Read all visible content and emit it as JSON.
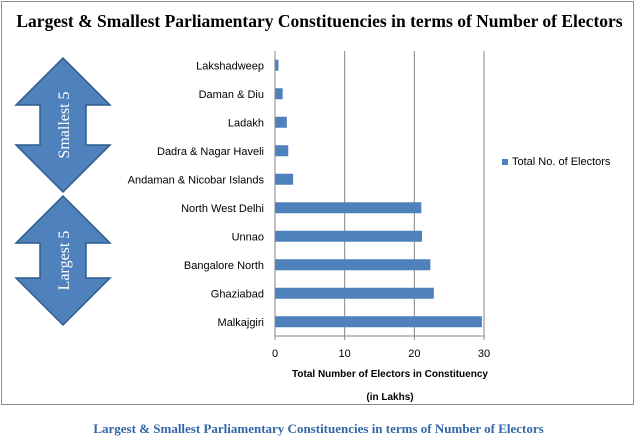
{
  "chart_data": {
    "type": "bar",
    "orientation": "horizontal",
    "title": "Largest & Smallest Parliamentary Constituencies in terms of Number of Electors",
    "categories": [
      "Lakshadweep",
      "Daman & Diu",
      "Ladakh",
      "Dadra & Nagar Haveli",
      "Andaman & Nicobar Islands",
      "North West Delhi",
      "Unnao",
      "Bangalore North",
      "Ghaziabad",
      "Malkajgiri"
    ],
    "series": [
      {
        "name": "Total No. of Electors",
        "values": [
          0.5,
          1.1,
          1.7,
          1.9,
          2.6,
          21.0,
          21.1,
          22.3,
          22.8,
          29.7
        ]
      }
    ],
    "xlabel": "Total Number of Electors in Constituency",
    "xlabel_unit": "(in Lakhs)",
    "xlim": [
      0,
      30
    ],
    "xticks": [
      0,
      10,
      20,
      30
    ],
    "grid": "vertical",
    "legend_position": "right",
    "bar_color": "#4f81bd",
    "group_labels": [
      {
        "label": "Smallest 5",
        "covers": [
          "Lakshadweep",
          "Daman & Diu",
          "Ladakh",
          "Dadra & Nagar Haveli",
          "Andaman & Nicobar Islands"
        ]
      },
      {
        "label": "Largest 5",
        "covers": [
          "North West Delhi",
          "Unnao",
          "Bangalore North",
          "Ghaziabad",
          "Malkajgiri"
        ]
      }
    ],
    "arrow_color": "#4f81bd"
  },
  "caption": "Largest & Smallest Parliamentary Constituencies in terms of Number of Electors",
  "colors": {
    "caption": "#3366a8",
    "grid": "#868686"
  }
}
